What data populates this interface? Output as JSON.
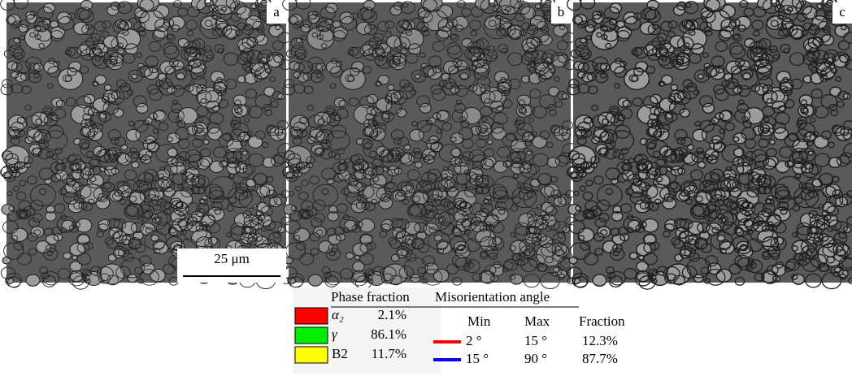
{
  "panels": [
    {
      "label": "a"
    },
    {
      "label": "b"
    },
    {
      "label": "c"
    }
  ],
  "scale_bar": "25 μm",
  "phase_fraction": {
    "title": "Phase fraction",
    "rows": [
      {
        "phase": "α₂",
        "color": "#ff0000",
        "fraction": "2.1%"
      },
      {
        "phase": "γ",
        "color": "#00ee00",
        "fraction": "86.1%"
      },
      {
        "phase": "B2",
        "color": "#ffff00",
        "fraction": "11.7%"
      }
    ]
  },
  "misorientation": {
    "title": "Misorientation angle",
    "headers": [
      "Min",
      "Max",
      "Fraction"
    ],
    "rows": [
      {
        "color": "#ff0000",
        "min": "2 °",
        "max": "15 °",
        "fraction": "12.3%"
      },
      {
        "color": "#0000ff",
        "min": "15 °",
        "max": "90 °",
        "fraction": "87.7%"
      }
    ]
  }
}
